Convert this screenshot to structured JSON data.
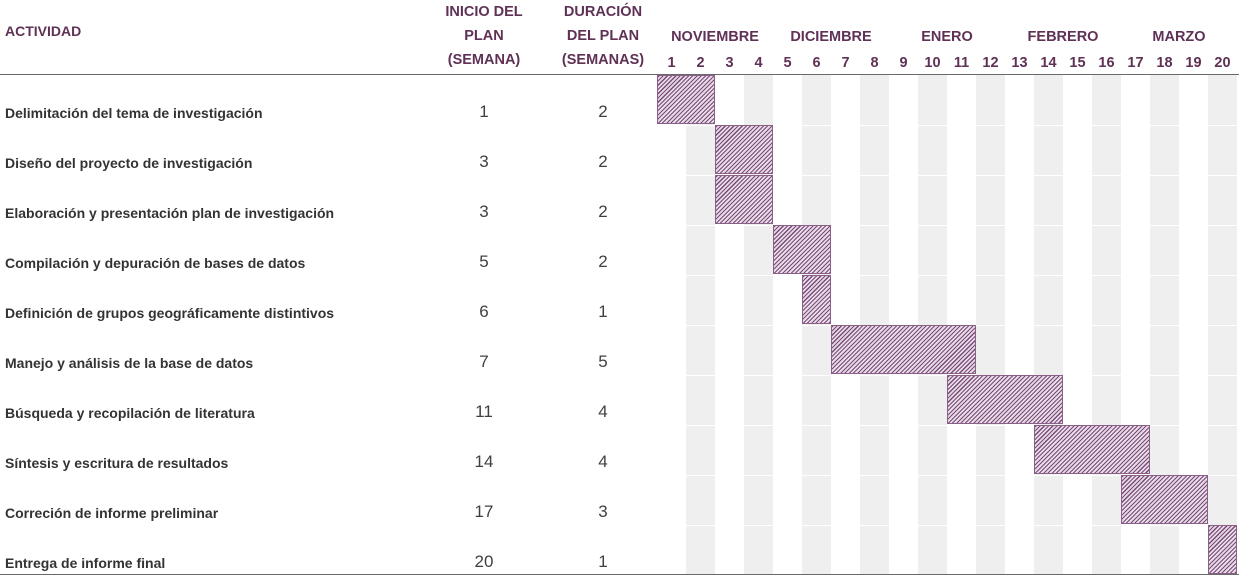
{
  "headers": {
    "activity": "ACTIVIDAD",
    "start_line1": "INICIO DEL",
    "start_line2": "PLAN",
    "start_line3": "(SEMANA)",
    "duration_line1": "DURACIÓN",
    "duration_line2": "DEL PLAN",
    "duration_line3": "(SEMANAS)"
  },
  "months": [
    {
      "label": "NOVIEMBRE",
      "weeks": [
        1,
        4
      ]
    },
    {
      "label": "DICIEMBRE",
      "weeks": [
        5,
        8
      ]
    },
    {
      "label": "ENERO",
      "weeks": [
        9,
        12
      ]
    },
    {
      "label": "FEBRERO",
      "weeks": [
        13,
        16
      ]
    },
    {
      "label": "MARZO",
      "weeks": [
        17,
        20
      ]
    }
  ],
  "colors": {
    "header_text": "#5f3155",
    "bar_fill": "#e6dbe6",
    "bar_hatch": "#7a4b78",
    "stripe": "#efefef"
  },
  "chart_data": {
    "type": "gantt",
    "weeks": [
      "1",
      "2",
      "3",
      "4",
      "5",
      "6",
      "7",
      "8",
      "9",
      "10",
      "11",
      "12",
      "13",
      "14",
      "15",
      "16",
      "17",
      "18",
      "19",
      "20"
    ],
    "tasks": [
      {
        "name": "Delimitación del tema de investigación",
        "start": 1,
        "duration": 2
      },
      {
        "name": "Diseño del proyecto de investigación",
        "start": 3,
        "duration": 2
      },
      {
        "name": "Elaboración y presentación plan de investigación",
        "start": 3,
        "duration": 2
      },
      {
        "name": "Compilación y depuración de bases de datos",
        "start": 5,
        "duration": 2
      },
      {
        "name": "Definición de grupos geográficamente distintivos",
        "start": 6,
        "duration": 1
      },
      {
        "name": "Manejo y análisis de la base de datos",
        "start": 7,
        "duration": 5
      },
      {
        "name": "Búsqueda y recopilación de literatura",
        "start": 11,
        "duration": 4
      },
      {
        "name": "Síntesis y escritura de resultados",
        "start": 14,
        "duration": 4
      },
      {
        "name": "Correción de informe preliminar",
        "start": 17,
        "duration": 3
      },
      {
        "name": "Entrega de informe final",
        "start": 20,
        "duration": 1
      }
    ]
  }
}
